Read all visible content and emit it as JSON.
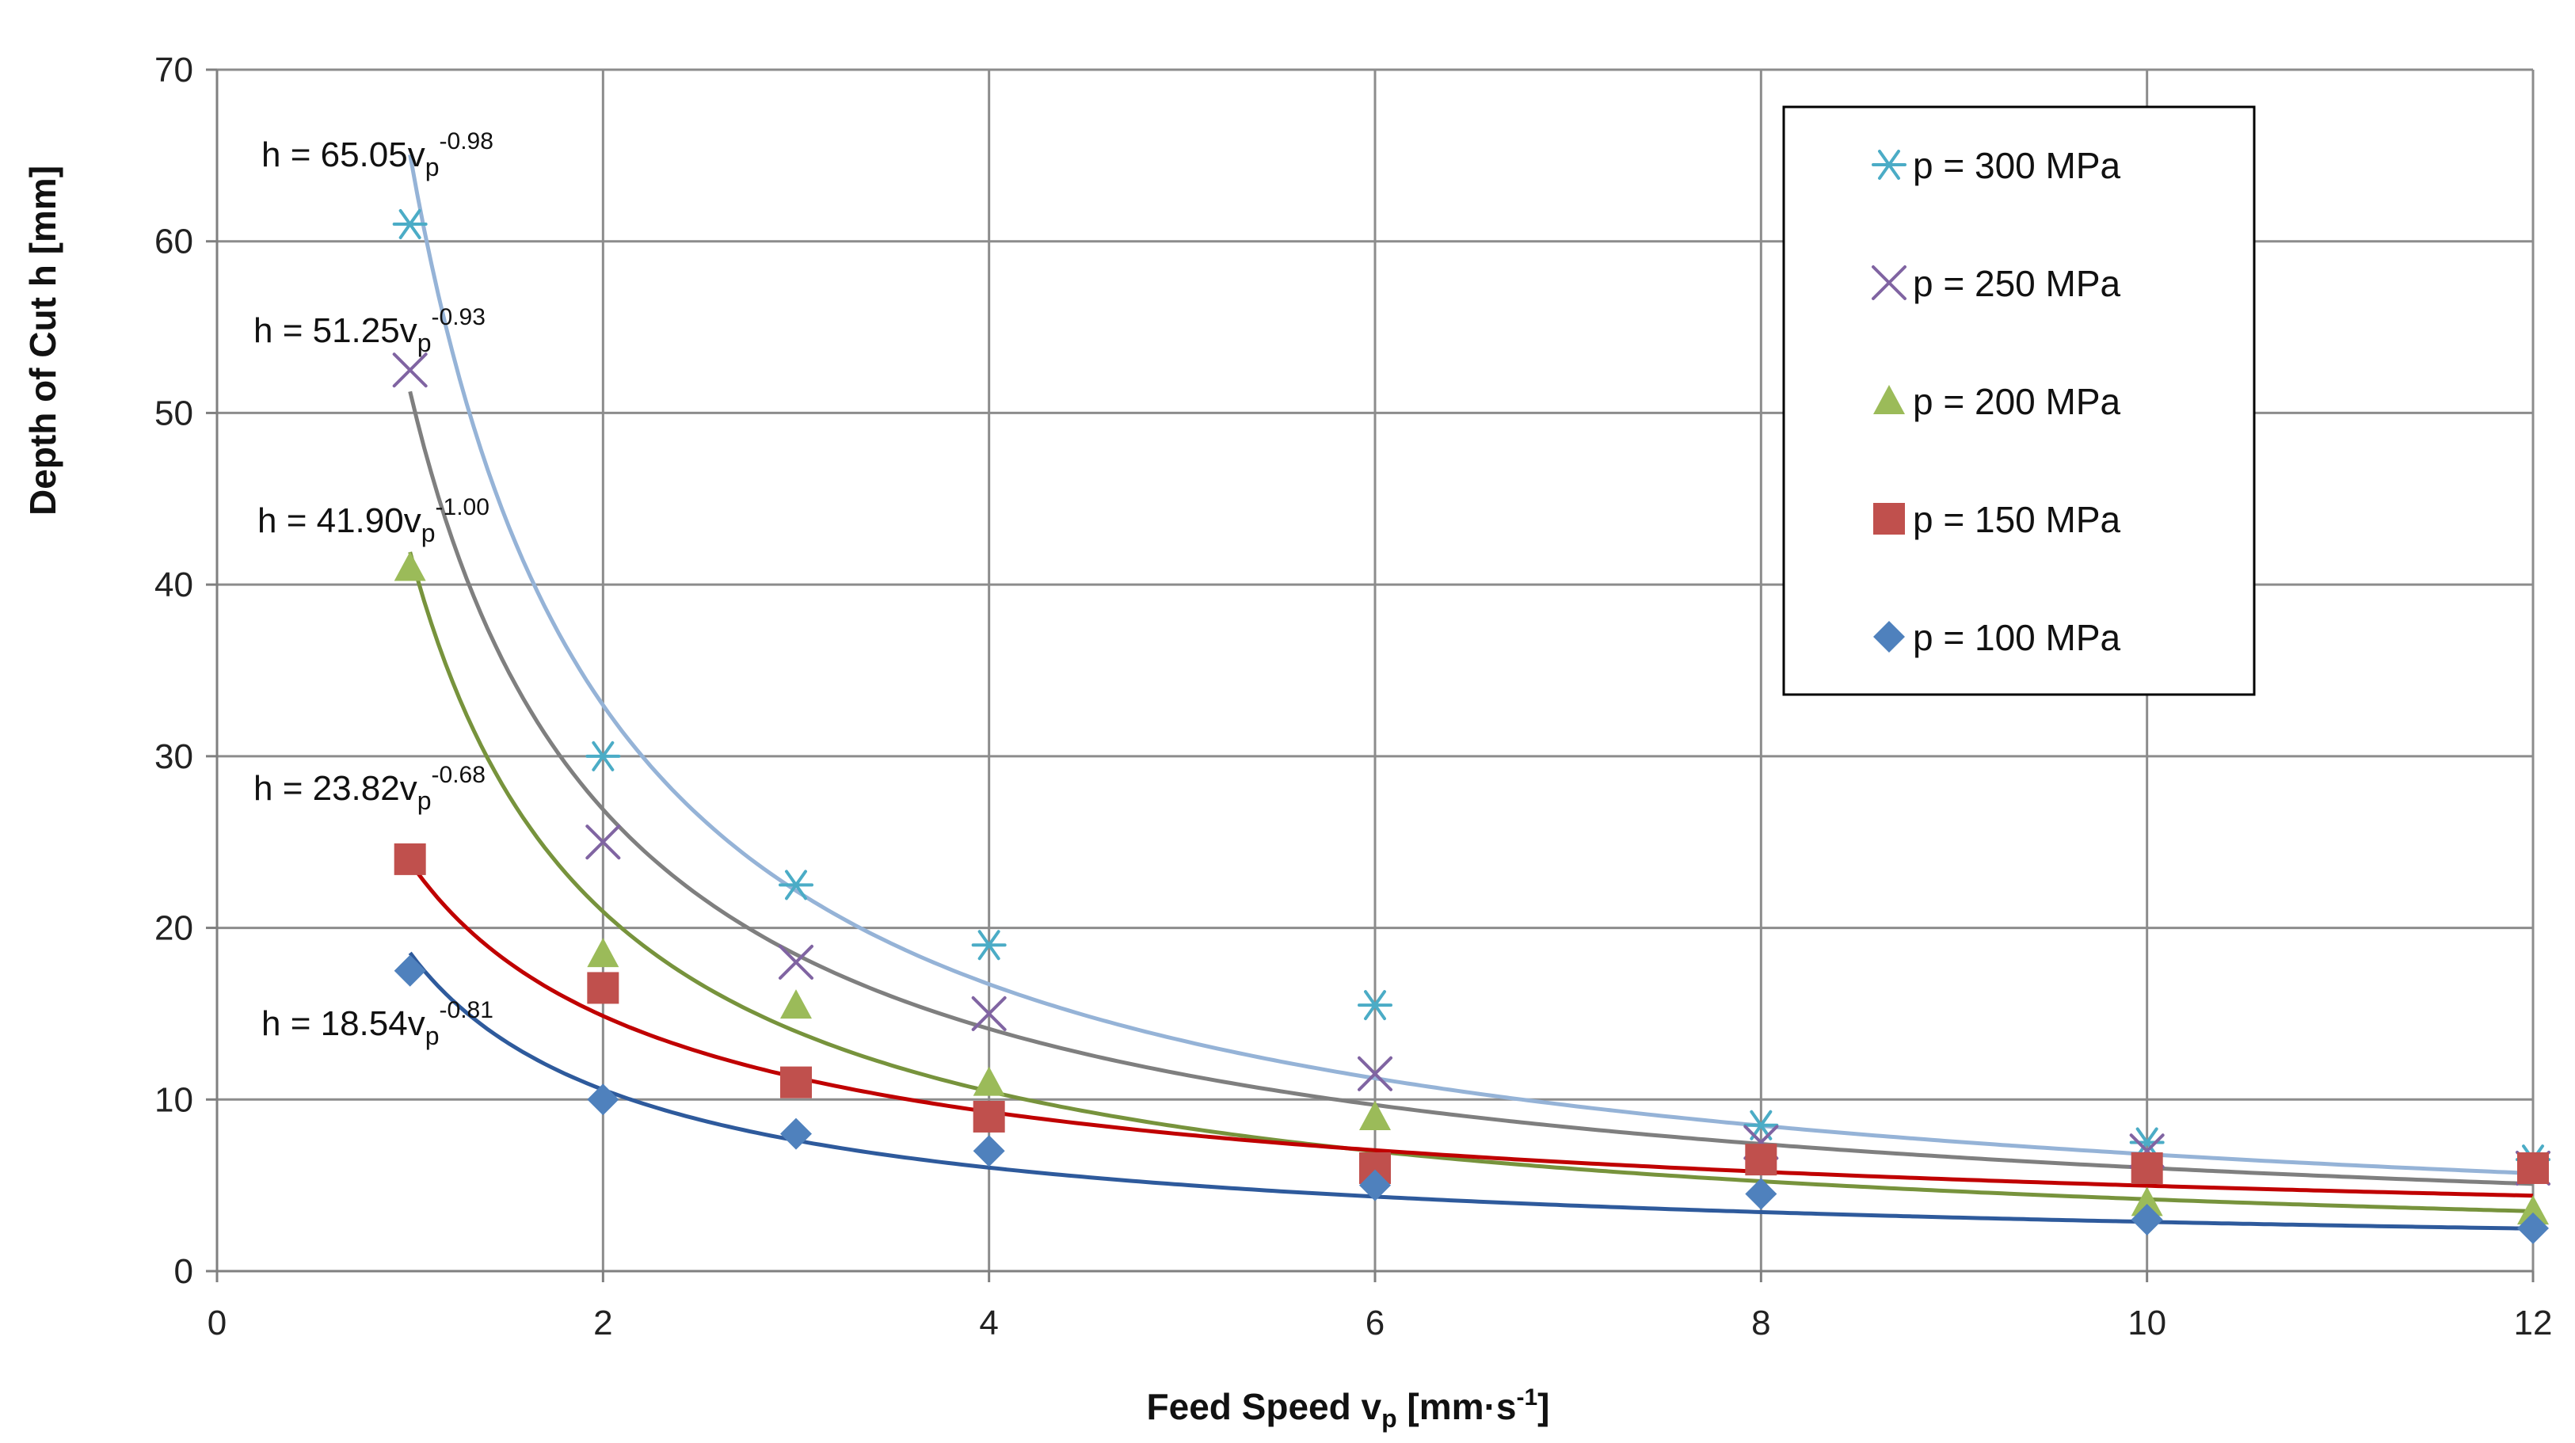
{
  "chart_data": {
    "type": "scatter",
    "title": "",
    "xlabel": "Feed Speed v",
    "xlabel_sub": "p",
    "xlabel_unit": " [mm·s",
    "xlabel_unit_sup": "-1",
    "xlabel_end": "]",
    "ylabel": "Depth of Cut h [mm]",
    "xlim": [
      0,
      12
    ],
    "ylim": [
      0,
      70
    ],
    "xticks": [
      0,
      2,
      4,
      6,
      8,
      10,
      12
    ],
    "yticks": [
      0,
      10,
      20,
      30,
      40,
      50,
      60,
      70
    ],
    "grid": true,
    "legend_position": "top-right",
    "x": [
      1,
      2,
      3,
      4,
      6,
      8,
      10,
      12
    ],
    "series": [
      {
        "name": "p = 300 MPa",
        "marker": "asterisk",
        "color": "#4bacc6",
        "fit_color": "#95b3d7",
        "values": [
          61,
          30,
          22.5,
          19,
          15.5,
          8.5,
          7.5,
          6.5
        ],
        "fit": {
          "a": 65.05,
          "b": -0.98
        },
        "equation": {
          "prefix": "h = 65.05v",
          "sub": "p",
          "sup": "-0.98"
        }
      },
      {
        "name": "p = 250 MPa",
        "marker": "cross",
        "color": "#8064a2",
        "fit_color": "#7f7f7f",
        "values": [
          52.5,
          25,
          18,
          15,
          11.5,
          7.5,
          7,
          6
        ],
        "fit": {
          "a": 51.25,
          "b": -0.93
        },
        "equation": {
          "prefix": "h = 51.25v",
          "sub": "p",
          "sup": "-0.93"
        }
      },
      {
        "name": "p = 200 MPa",
        "marker": "triangle",
        "color": "#9bbb59",
        "fit_color": "#77933c",
        "values": [
          41,
          18.5,
          15.5,
          11,
          9,
          6.5,
          4,
          3.5
        ],
        "fit": {
          "a": 41.9,
          "b": -1.0
        },
        "equation": {
          "prefix": "h = 41.90v",
          "sub": "p",
          "sup": "-1.00"
        }
      },
      {
        "name": "p = 150 MPa",
        "marker": "square",
        "color": "#c0504d",
        "fit_color": "#c00000",
        "values": [
          24,
          16.5,
          11,
          9,
          6,
          6.5,
          6,
          6
        ],
        "fit": {
          "a": 23.82,
          "b": -0.68
        },
        "equation": {
          "prefix": "h = 23.82v",
          "sub": "p",
          "sup": "-0.68"
        }
      },
      {
        "name": "p = 100 MPa",
        "marker": "diamond",
        "color": "#4f81bd",
        "fit_color": "#2e5a9c",
        "values": [
          17.5,
          10,
          8,
          7,
          5,
          4.5,
          3,
          2.5
        ],
        "fit": {
          "a": 18.54,
          "b": -0.81
        },
        "equation": {
          "prefix": "h = 18.54v",
          "sub": "p",
          "sup": "-0.81"
        }
      }
    ]
  }
}
